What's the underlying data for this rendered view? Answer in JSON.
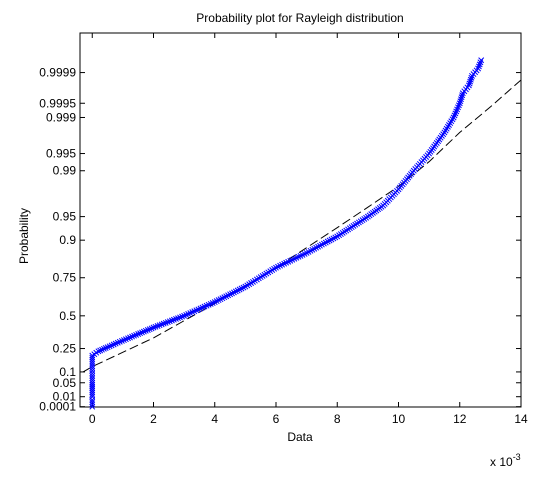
{
  "chart_data": {
    "type": "scatter",
    "title": "Probability plot for Rayleigh distribution",
    "xlabel": "Data",
    "ylabel": "Probability",
    "x_multiplier_label": "x 10",
    "x_multiplier_exponent": "-3",
    "xlim": [
      -0.0004,
      0.014
    ],
    "x_ticks": [
      0,
      2,
      4,
      6,
      8,
      10,
      12,
      14
    ],
    "x_tick_labels": [
      "0",
      "2",
      "4",
      "6",
      "8",
      "10",
      "12",
      "14"
    ],
    "y_scale": "rayleigh-probability",
    "ylim": [
      5e-05,
      0.99999
    ],
    "y_ticks": [
      0.0001,
      0.01,
      0.05,
      0.1,
      0.25,
      0.5,
      0.75,
      0.9,
      0.95,
      0.99,
      0.995,
      0.999,
      0.9995,
      0.9999
    ],
    "y_tick_labels": [
      "0.0001",
      "0.01",
      "0.05",
      "0.1",
      "0.25",
      "0.5",
      "0.75",
      "0.9",
      "0.95",
      "0.99",
      "0.995",
      "0.999",
      "0.9995",
      "0.9999"
    ],
    "grid": false,
    "series": [
      {
        "role": "data",
        "marker": "x",
        "color": "#0000ff",
        "points": [
          [
            0.0,
            0.0001
          ],
          [
            0.0,
            0.001
          ],
          [
            0.0,
            0.005
          ],
          [
            0.0,
            0.01
          ],
          [
            0.0,
            0.03
          ],
          [
            0.0,
            0.05
          ],
          [
            0.0,
            0.08
          ],
          [
            0.0,
            0.12
          ],
          [
            0.0,
            0.16
          ],
          [
            0.0,
            0.2
          ],
          [
            0.0002,
            0.23
          ],
          [
            0.0005,
            0.26
          ],
          [
            0.0009,
            0.3
          ],
          [
            0.0015,
            0.36
          ],
          [
            0.002,
            0.41
          ],
          [
            0.003,
            0.5
          ],
          [
            0.004,
            0.6
          ],
          [
            0.005,
            0.7
          ],
          [
            0.006,
            0.8
          ],
          [
            0.007,
            0.86
          ],
          [
            0.008,
            0.91
          ],
          [
            0.009,
            0.95
          ],
          [
            0.0095,
            0.965
          ],
          [
            0.01,
            0.98
          ],
          [
            0.0105,
            0.99
          ],
          [
            0.011,
            0.995
          ],
          [
            0.0115,
            0.998
          ],
          [
            0.0118,
            0.999
          ],
          [
            0.012,
            0.9995
          ],
          [
            0.0121,
            0.9997
          ],
          [
            0.0123,
            0.9998
          ],
          [
            0.0124,
            0.99988
          ],
          [
            0.0126,
            0.99992
          ],
          [
            0.0127,
            0.99995
          ]
        ]
      },
      {
        "role": "reference",
        "line_style": "dashed",
        "color": "#000000",
        "points": [
          [
            -0.0003,
            0.1
          ],
          [
            0.0,
            0.13
          ],
          [
            0.002,
            0.33
          ],
          [
            0.004,
            0.59
          ],
          [
            0.006,
            0.8
          ],
          [
            0.008,
            0.93
          ],
          [
            0.009,
            0.963
          ],
          [
            0.01,
            0.982
          ],
          [
            0.011,
            0.993
          ],
          [
            0.012,
            0.998
          ],
          [
            0.013,
            0.9994
          ],
          [
            0.014,
            0.99985
          ]
        ]
      }
    ]
  }
}
